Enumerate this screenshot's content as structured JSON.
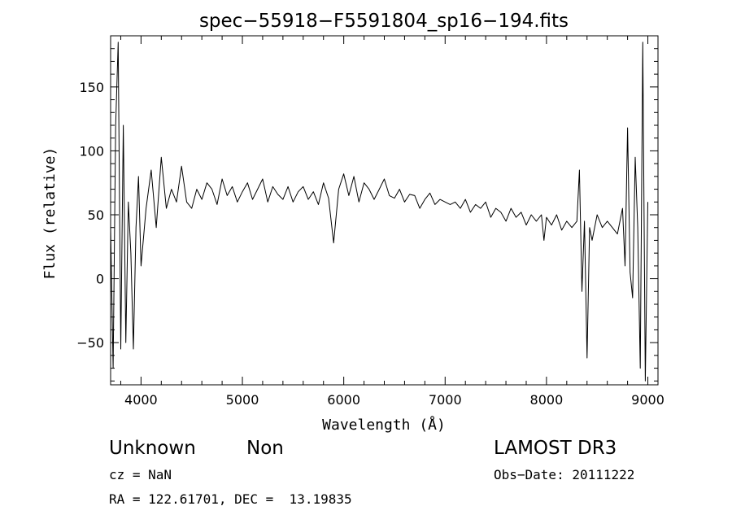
{
  "chart_data": {
    "type": "line",
    "title": "spec−55918−F5591804_sp16−194.fits",
    "xlabel": "Wavelength (Å)",
    "ylabel": "Flux (relative)",
    "xlim": [
      3700,
      9100
    ],
    "ylim": [
      -83,
      190
    ],
    "xticks": [
      4000,
      5000,
      6000,
      7000,
      8000,
      9000
    ],
    "yticks": [
      -50,
      0,
      50,
      100,
      150
    ],
    "ytick_labels": [
      "−50",
      "0",
      "50",
      "100",
      "150"
    ],
    "grid": false,
    "series": [
      {
        "name": "flux",
        "x": [
          3700,
          3725,
          3750,
          3775,
          3800,
          3825,
          3850,
          3875,
          3900,
          3925,
          3950,
          3975,
          4000,
          4050,
          4100,
          4150,
          4200,
          4250,
          4300,
          4350,
          4400,
          4450,
          4500,
          4550,
          4600,
          4650,
          4700,
          4750,
          4800,
          4850,
          4900,
          4950,
          5000,
          5050,
          5100,
          5150,
          5200,
          5250,
          5300,
          5350,
          5400,
          5450,
          5500,
          5550,
          5600,
          5650,
          5700,
          5750,
          5800,
          5850,
          5900,
          5950,
          6000,
          6050,
          6100,
          6150,
          6200,
          6250,
          6300,
          6350,
          6400,
          6450,
          6500,
          6550,
          6600,
          6650,
          6700,
          6750,
          6800,
          6850,
          6900,
          6950,
          7000,
          7050,
          7100,
          7150,
          7200,
          7250,
          7300,
          7350,
          7400,
          7450,
          7500,
          7550,
          7600,
          7650,
          7700,
          7750,
          7800,
          7850,
          7900,
          7950,
          7975,
          8000,
          8050,
          8100,
          8150,
          8200,
          8250,
          8300,
          8325,
          8350,
          8375,
          8400,
          8425,
          8450,
          8500,
          8550,
          8600,
          8650,
          8700,
          8750,
          8775,
          8800,
          8825,
          8850,
          8875,
          8900,
          8925,
          8950,
          8975,
          9000
        ],
        "values": [
          40,
          -70,
          120,
          185,
          -55,
          120,
          -50,
          60,
          20,
          -55,
          40,
          80,
          10,
          55,
          85,
          40,
          95,
          55,
          70,
          60,
          88,
          60,
          55,
          70,
          62,
          75,
          70,
          58,
          78,
          65,
          72,
          60,
          68,
          75,
          62,
          70,
          78,
          60,
          72,
          66,
          62,
          72,
          60,
          68,
          72,
          62,
          68,
          58,
          75,
          63,
          28,
          70,
          82,
          65,
          80,
          60,
          75,
          70,
          62,
          70,
          78,
          65,
          63,
          70,
          60,
          66,
          65,
          55,
          62,
          67,
          58,
          62,
          60,
          58,
          60,
          55,
          62,
          52,
          58,
          55,
          60,
          48,
          55,
          52,
          45,
          55,
          48,
          52,
          42,
          50,
          45,
          50,
          30,
          48,
          42,
          50,
          38,
          45,
          40,
          45,
          85,
          -10,
          45,
          -62,
          40,
          30,
          50,
          40,
          45,
          40,
          35,
          55,
          10,
          118,
          5,
          -15,
          95,
          40,
          -70,
          185,
          -80,
          60
        ]
      }
    ]
  },
  "annotations": {
    "name": "Unknown",
    "class": "Non",
    "survey": "LAMOST DR3",
    "cz": "cz = NaN",
    "obs_date": "Obs−Date: 20111222",
    "radec": "RA = 122.61701, DEC =  13.19835"
  }
}
